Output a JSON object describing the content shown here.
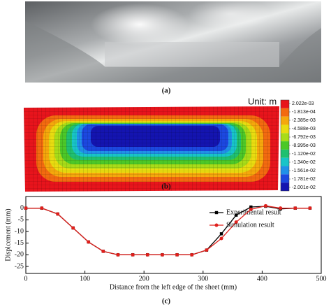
{
  "chart_data": [
    {
      "type": "image",
      "caption": "(a)"
    },
    {
      "type": "heatmap",
      "caption": "(b)",
      "unit_label": "Unit: m",
      "colorbar_ticks": [
        {
          "value": 0.002022,
          "label": "2.022e-03"
        },
        {
          "value": -0.0001813,
          "label": "-1.813e-04"
        },
        {
          "value": -0.002385,
          "label": "-2.385e-03"
        },
        {
          "value": -0.004588,
          "label": "-4.588e-03"
        },
        {
          "value": -0.006792,
          "label": "-6.792e-03"
        },
        {
          "value": -0.008995,
          "label": "-8.995e-03"
        },
        {
          "value": -0.0112,
          "label": "-1.120e-02"
        },
        {
          "value": -0.0134,
          "label": "-1.340e-02"
        },
        {
          "value": -0.01561,
          "label": "-1.561e-02"
        },
        {
          "value": -0.01781,
          "label": "-1.781e-02"
        },
        {
          "value": -0.02001,
          "label": "-2.001e-02"
        }
      ],
      "colorbar_colors": [
        "#e8141c",
        "#f36a10",
        "#f5a80c",
        "#e9dc10",
        "#a8dc18",
        "#4cc828",
        "#20c070",
        "#18c4c8",
        "#2090e8",
        "#1c48e0",
        "#1414b0"
      ]
    },
    {
      "type": "line",
      "caption": "(c)",
      "x_label": "Distance from the left edge of the sheet (mm)",
      "y_label": "Displcement (mm)",
      "xlim": [
        0,
        500
      ],
      "ylim": [
        -28,
        5
      ],
      "xticks": [
        0,
        100,
        200,
        300,
        400,
        500
      ],
      "yticks": [
        0,
        -5,
        -10,
        -15,
        -20,
        -25
      ],
      "x": [
        0,
        27,
        54,
        80,
        106,
        131,
        156,
        181,
        206,
        231,
        256,
        281,
        306,
        331,
        356,
        381,
        406,
        431,
        456,
        481
      ],
      "series": [
        {
          "name": "Experimental result",
          "color": "#000000",
          "marker": "square",
          "values": [
            0,
            0,
            -2.5,
            -8.5,
            -14.5,
            -18.5,
            -20,
            -20,
            -20,
            -20,
            -20,
            -20,
            -18,
            -11,
            -3,
            0.5,
            0.8,
            -0.3,
            0,
            0
          ]
        },
        {
          "name": "Simulation result",
          "color": "#e0201c",
          "marker": "circle",
          "values": [
            0,
            0,
            -2.5,
            -8.5,
            -14.5,
            -18.5,
            -20,
            -20,
            -20,
            -20,
            -20,
            -20,
            -18,
            -13,
            -6,
            -0.5,
            1,
            0,
            0,
            0
          ]
        }
      ]
    }
  ]
}
